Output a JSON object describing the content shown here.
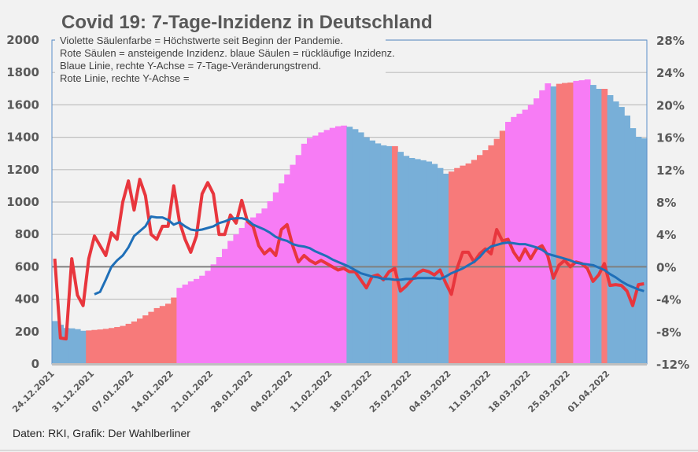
{
  "chart_data": {
    "type": "bar",
    "title": "Covid 19: 7-Tage-Inzidenz in Deutschland",
    "annotations": [
      "Violette Säulenfarbe = Höchstwerte seit Beginn der Pandemie.",
      "Rote Säulen = ansteigende Inzidenz. blaue Säulen = rückläufige Inzidenz.",
      "Blaue Linie, rechte Y-Achse = 7-Tage-Veränderungstrend.",
      "Rote Linie, rechte Y-Achse ="
    ],
    "footer": "Daten: RKI, Grafik: Der Wahlberliner",
    "start_date": "24.12.2021",
    "x_tick_labels": [
      "24.12.2021",
      "31.12.2021",
      "07.01.2022",
      "14.01.2022",
      "21.01.2022",
      "28.01.2022",
      "04.02.2022",
      "11.02.2022",
      "18.02.2022",
      "25.02.2022",
      "04.03.2022",
      "11.03.2022",
      "18.03.2022",
      "25.03.2022",
      "01.04.2022"
    ],
    "y_left": {
      "min": 0,
      "max": 2000,
      "step": 200,
      "ticks": [
        "0",
        "200",
        "400",
        "600",
        "800",
        "1000",
        "1200",
        "1400",
        "1600",
        "1800",
        "2000"
      ]
    },
    "y_right": {
      "min": -12,
      "max": 28,
      "step": 4,
      "unit": "%",
      "ticks": [
        "-12%",
        "-8%",
        "-4%",
        "0%",
        "4%",
        "8%",
        "12%",
        "16%",
        "20%",
        "24%",
        "28%"
      ]
    },
    "colors": {
      "rising": "#f77a7a",
      "falling": "#78afd8",
      "record": "#f77cf5",
      "trend_line": "#1f6fb8",
      "change_line": "#e8363d",
      "zero_line": "#7f7f7f",
      "grid": "#bfbfbf"
    },
    "bar_categories": [
      "falling",
      "rising",
      "record"
    ],
    "bars": {
      "values": [
        265,
        242,
        222,
        220,
        215,
        205,
        207,
        210,
        213,
        217,
        222,
        228,
        235,
        248,
        262,
        280,
        300,
        322,
        345,
        358,
        372,
        410,
        470,
        490,
        510,
        525,
        545,
        575,
        615,
        660,
        710,
        760,
        800,
        840,
        875,
        905,
        930,
        960,
        1005,
        1060,
        1115,
        1170,
        1230,
        1290,
        1360,
        1395,
        1410,
        1430,
        1445,
        1458,
        1468,
        1472,
        1465,
        1450,
        1430,
        1400,
        1380,
        1362,
        1350,
        1345,
        1345,
        1310,
        1285,
        1272,
        1265,
        1258,
        1250,
        1235,
        1210,
        1175,
        1188,
        1210,
        1225,
        1238,
        1260,
        1290,
        1320,
        1350,
        1390,
        1440,
        1495,
        1525,
        1545,
        1570,
        1600,
        1640,
        1690,
        1733,
        1714,
        1730,
        1735,
        1738,
        1748,
        1752,
        1757,
        1723,
        1699,
        1699,
        1660,
        1621,
        1587,
        1534,
        1456,
        1403,
        1393
      ],
      "category": [
        "falling",
        "falling",
        "falling",
        "falling",
        "falling",
        "falling",
        "rising",
        "rising",
        "rising",
        "rising",
        "rising",
        "rising",
        "rising",
        "rising",
        "rising",
        "rising",
        "rising",
        "rising",
        "rising",
        "rising",
        "rising",
        "rising",
        "record",
        "record",
        "record",
        "record",
        "record",
        "record",
        "record",
        "record",
        "record",
        "record",
        "record",
        "record",
        "record",
        "record",
        "record",
        "record",
        "record",
        "record",
        "record",
        "record",
        "record",
        "record",
        "record",
        "record",
        "record",
        "record",
        "record",
        "record",
        "record",
        "record",
        "falling",
        "falling",
        "falling",
        "falling",
        "falling",
        "falling",
        "falling",
        "falling",
        "rising",
        "falling",
        "falling",
        "falling",
        "falling",
        "falling",
        "falling",
        "falling",
        "falling",
        "falling",
        "rising",
        "rising",
        "rising",
        "rising",
        "rising",
        "rising",
        "rising",
        "rising",
        "rising",
        "rising",
        "record",
        "record",
        "record",
        "record",
        "record",
        "record",
        "record",
        "record",
        "falling",
        "rising",
        "rising",
        "rising",
        "record",
        "record",
        "record",
        "falling",
        "falling",
        "rising",
        "falling",
        "falling",
        "falling",
        "falling",
        "falling",
        "falling",
        "falling"
      ]
    },
    "series": [
      {
        "name": "Rote Linie (Veränderung, rechte Y-Achse, %)",
        "start_index": 0,
        "values": [
          1.0,
          -8.8,
          -8.9,
          1.0,
          -3.5,
          -4.8,
          1.0,
          3.8,
          2.6,
          1.4,
          4.2,
          3.4,
          8.0,
          10.6,
          7.0,
          10.8,
          8.8,
          4.0,
          3.4,
          5.0,
          5.0,
          10.0,
          5.6,
          3.4,
          1.8,
          3.8,
          9.0,
          10.4,
          9.0,
          4.0,
          4.0,
          6.4,
          5.4,
          8.2,
          5.6,
          5.0,
          2.6,
          1.6,
          2.2,
          1.4,
          4.6,
          5.2,
          2.6,
          0.6,
          1.4,
          0.8,
          0.4,
          0.8,
          0.4,
          0.0,
          -0.4,
          -0.2,
          -0.6,
          -0.6,
          -1.6,
          -2.6,
          -1.2,
          -1.0,
          -1.6,
          -0.6,
          -0.2,
          -3.0,
          -2.4,
          -1.6,
          -0.8,
          -0.4,
          -0.6,
          -1.0,
          -0.4,
          -2.0,
          -3.4,
          -0.2,
          1.8,
          1.8,
          0.6,
          1.6,
          2.2,
          1.6,
          4.6,
          3.2,
          3.4,
          1.8,
          0.8,
          2.2,
          1.0,
          2.2,
          2.6,
          1.4,
          -1.4,
          0.2,
          0.8,
          0.0,
          0.6,
          0.4,
          -0.2,
          -1.8,
          -1.0,
          0.4,
          -2.3,
          -2.2,
          -2.3,
          -3.0,
          -4.8,
          -2.2,
          -2.1
        ]
      },
      {
        "name": "Blaue Linie (7-Tage-Veränderungstrend, rechte Y-Achse, %)",
        "start_index": 7,
        "values": [
          -3.4,
          -3.1,
          -1.6,
          0.0,
          0.8,
          1.4,
          2.4,
          3.8,
          4.4,
          5.0,
          6.2,
          6.1,
          6.1,
          5.8,
          5.2,
          5.5,
          5.0,
          4.6,
          4.5,
          4.6,
          4.8,
          5.0,
          5.4,
          5.6,
          5.9,
          6.0,
          6.0,
          5.8,
          5.2,
          4.9,
          4.6,
          4.2,
          3.7,
          3.4,
          3.2,
          2.8,
          2.6,
          2.5,
          2.3,
          1.9,
          1.6,
          1.3,
          0.9,
          0.6,
          0.3,
          0.0,
          -0.4,
          -0.8,
          -1.0,
          -1.2,
          -1.3,
          -1.5,
          -1.5,
          -1.6,
          -1.6,
          -1.5,
          -1.5,
          -1.4,
          -1.4,
          -1.4,
          -1.4,
          -1.5,
          -1.2,
          -0.8,
          -0.5,
          -0.2,
          0.2,
          0.6,
          1.2,
          2.0,
          2.5,
          2.7,
          2.9,
          3.0,
          2.9,
          2.8,
          2.8,
          2.6,
          2.4,
          2.1,
          1.6,
          1.4,
          1.2,
          1.0,
          0.8,
          0.5,
          0.4,
          0.3,
          0.2,
          -0.1,
          -0.4,
          -0.9,
          -1.3,
          -1.8,
          -2.2,
          -2.5,
          -2.8,
          -3.0
        ]
      }
    ],
    "grid": true,
    "legend": "none"
  }
}
